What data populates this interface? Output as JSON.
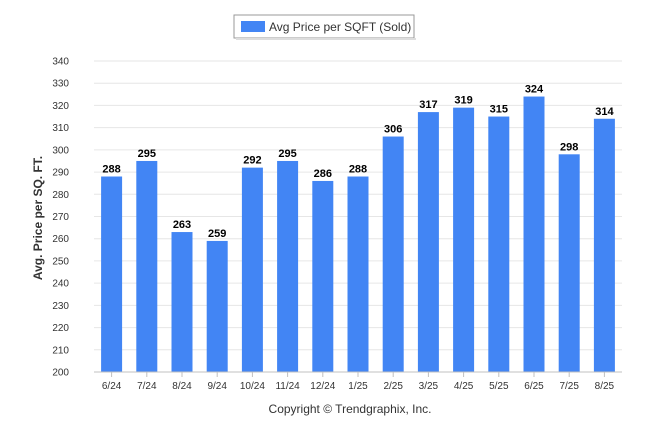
{
  "chart_data": {
    "type": "bar",
    "title": "",
    "xlabel": "",
    "ylabel": "Avg. Price per SQ. FT.",
    "categories": [
      "6/24",
      "7/24",
      "8/24",
      "9/24",
      "10/24",
      "11/24",
      "12/24",
      "1/25",
      "2/25",
      "3/25",
      "4/25",
      "5/25",
      "6/25",
      "7/25",
      "8/25"
    ],
    "series": [
      {
        "name": "Avg Price per SQFT (Sold)",
        "values": [
          288,
          295,
          263,
          259,
          292,
          295,
          286,
          288,
          306,
          317,
          319,
          315,
          324,
          298,
          314
        ],
        "color": "#4285f4"
      }
    ],
    "ylim": [
      200,
      340
    ],
    "yticks": [
      200,
      210,
      220,
      230,
      240,
      250,
      260,
      270,
      280,
      290,
      300,
      310,
      320,
      330,
      340
    ],
    "grid": true,
    "legend_position": "top-center",
    "data_labels": true
  },
  "footer": {
    "copyright": "Copyright © Trendgraphix, Inc."
  },
  "colors": {
    "bar": "#4285f4",
    "grid": "#e6e6e6",
    "axis": "#c0c0c0"
  }
}
